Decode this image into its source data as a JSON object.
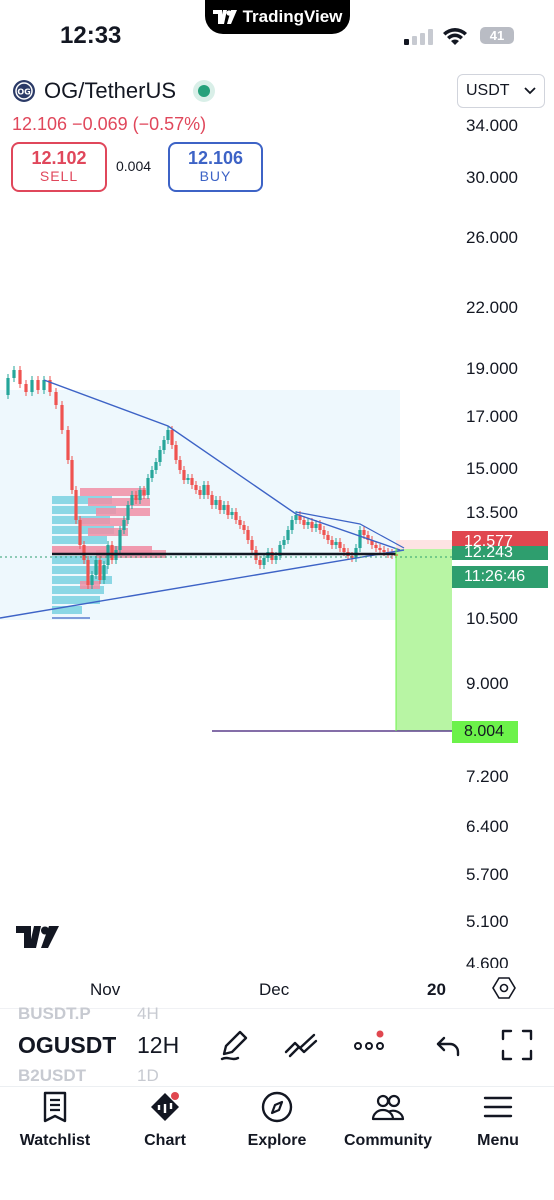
{
  "status_bar": {
    "time": "12:33",
    "app_label": "TradingView",
    "battery": "41"
  },
  "header": {
    "symbol": "OG/TetherUS",
    "price_line": "12.106  −0.069 (−0.57%)",
    "sell": {
      "price": "12.102",
      "label": "SELL"
    },
    "spread": "0.004",
    "buy": {
      "price": "12.106",
      "label": "BUY"
    },
    "currency": "USDT"
  },
  "price_scale": {
    "ticks": [
      "34.000",
      "30.000",
      "26.000",
      "22.000",
      "19.000",
      "17.000",
      "15.000",
      "13.500",
      "10.500",
      "9.000",
      "7.200",
      "6.400",
      "5.700",
      "5.100",
      "4.600"
    ],
    "tags": {
      "upper_tag": "12.577",
      "current_price": "12.243",
      "countdown": "11:26:46",
      "target": "8.004"
    }
  },
  "time_axis": {
    "labels": [
      "Nov",
      "Dec",
      "20"
    ]
  },
  "toolbar": {
    "symbol": "OGUSDT",
    "symbol_ghost_above": "BUSDT.P",
    "symbol_ghost_below": "B2USDT",
    "interval": "12H",
    "interval_ghost_above": "4H",
    "interval_ghost_below": "1D",
    "icons": [
      "draw-pen-icon",
      "line-tools-icon",
      "more-dots-icon",
      "undo-icon",
      "fullscreen-icon"
    ]
  },
  "bottom_nav": {
    "items": [
      {
        "label": "Watchlist",
        "icon": "watchlist-icon"
      },
      {
        "label": "Chart",
        "icon": "chart-icon"
      },
      {
        "label": "Explore",
        "icon": "compass-icon"
      },
      {
        "label": "Community",
        "icon": "community-icon"
      },
      {
        "label": "Menu",
        "icon": "menu-icon"
      }
    ]
  },
  "colors": {
    "up": "#26a69a",
    "down": "#ef5350",
    "accent_blue": "#3d63c6",
    "target_green": "#9cf27a",
    "sell_red": "#e0475b"
  }
}
